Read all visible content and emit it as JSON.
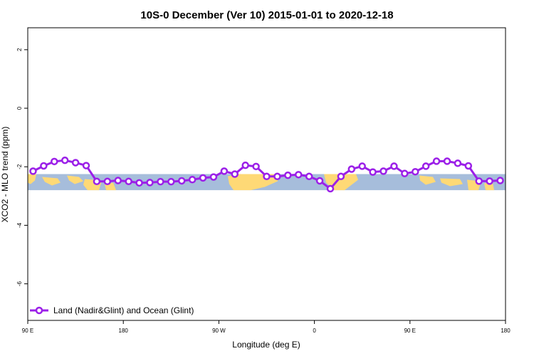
{
  "chart_data": {
    "type": "line",
    "title": "10S-0 December (Ver 10)   2015-01-01 to 2020-12-18",
    "xlabel": "Longitude (deg E)",
    "ylabel": "XCO2 - MLO trend (ppm)",
    "x_ticks": [
      {
        "value": 90,
        "label": "90 E"
      },
      {
        "value": 180,
        "label": "180"
      },
      {
        "value": 270,
        "label": "90 W"
      },
      {
        "value": 360,
        "label": "0"
      },
      {
        "value": 450,
        "label": "90 E"
      },
      {
        "value": 540,
        "label": "180"
      }
    ],
    "y_ticks": [
      {
        "value": 2,
        "label": "2"
      },
      {
        "value": 0,
        "label": "0"
      },
      {
        "value": -2,
        "label": "-2"
      },
      {
        "value": -4,
        "label": "-4"
      },
      {
        "value": -6,
        "label": "-6"
      }
    ],
    "xlim": [
      90,
      540
    ],
    "ylim": [
      -7.25,
      2.75
    ],
    "map_band": {
      "y_range": [
        -2.25,
        -2.8
      ],
      "ocean_color": "#a6bddb",
      "land_color": "#fed976"
    },
    "series": [
      {
        "name": "Land (Nadir&Glint) and Ocean (Glint)",
        "color": "#9b1fe8",
        "x": [
          95,
          105,
          115,
          125,
          135,
          145,
          155,
          165,
          175,
          185,
          195,
          205,
          215,
          225,
          235,
          245,
          255,
          265,
          275,
          285,
          295,
          305,
          315,
          325,
          335,
          345,
          355,
          365,
          375,
          385,
          395,
          405,
          415,
          425,
          435,
          445,
          455,
          465,
          475,
          485,
          495,
          505,
          515,
          525,
          535
        ],
        "y": [
          -2.15,
          -1.97,
          -1.82,
          -1.78,
          -1.86,
          -1.96,
          -2.5,
          -2.5,
          -2.47,
          -2.5,
          -2.55,
          -2.54,
          -2.51,
          -2.51,
          -2.48,
          -2.44,
          -2.38,
          -2.35,
          -2.15,
          -2.25,
          -1.95,
          -1.99,
          -2.33,
          -2.33,
          -2.29,
          -2.27,
          -2.33,
          -2.48,
          -2.75,
          -2.33,
          -2.08,
          -1.98,
          -2.18,
          -2.15,
          -1.98,
          -2.23,
          -2.17,
          -1.98,
          -1.81,
          -1.81,
          -1.88,
          -1.97,
          -2.49,
          -2.49,
          -2.47
        ]
      }
    ],
    "legend": {
      "placement": "bottom-left"
    }
  }
}
